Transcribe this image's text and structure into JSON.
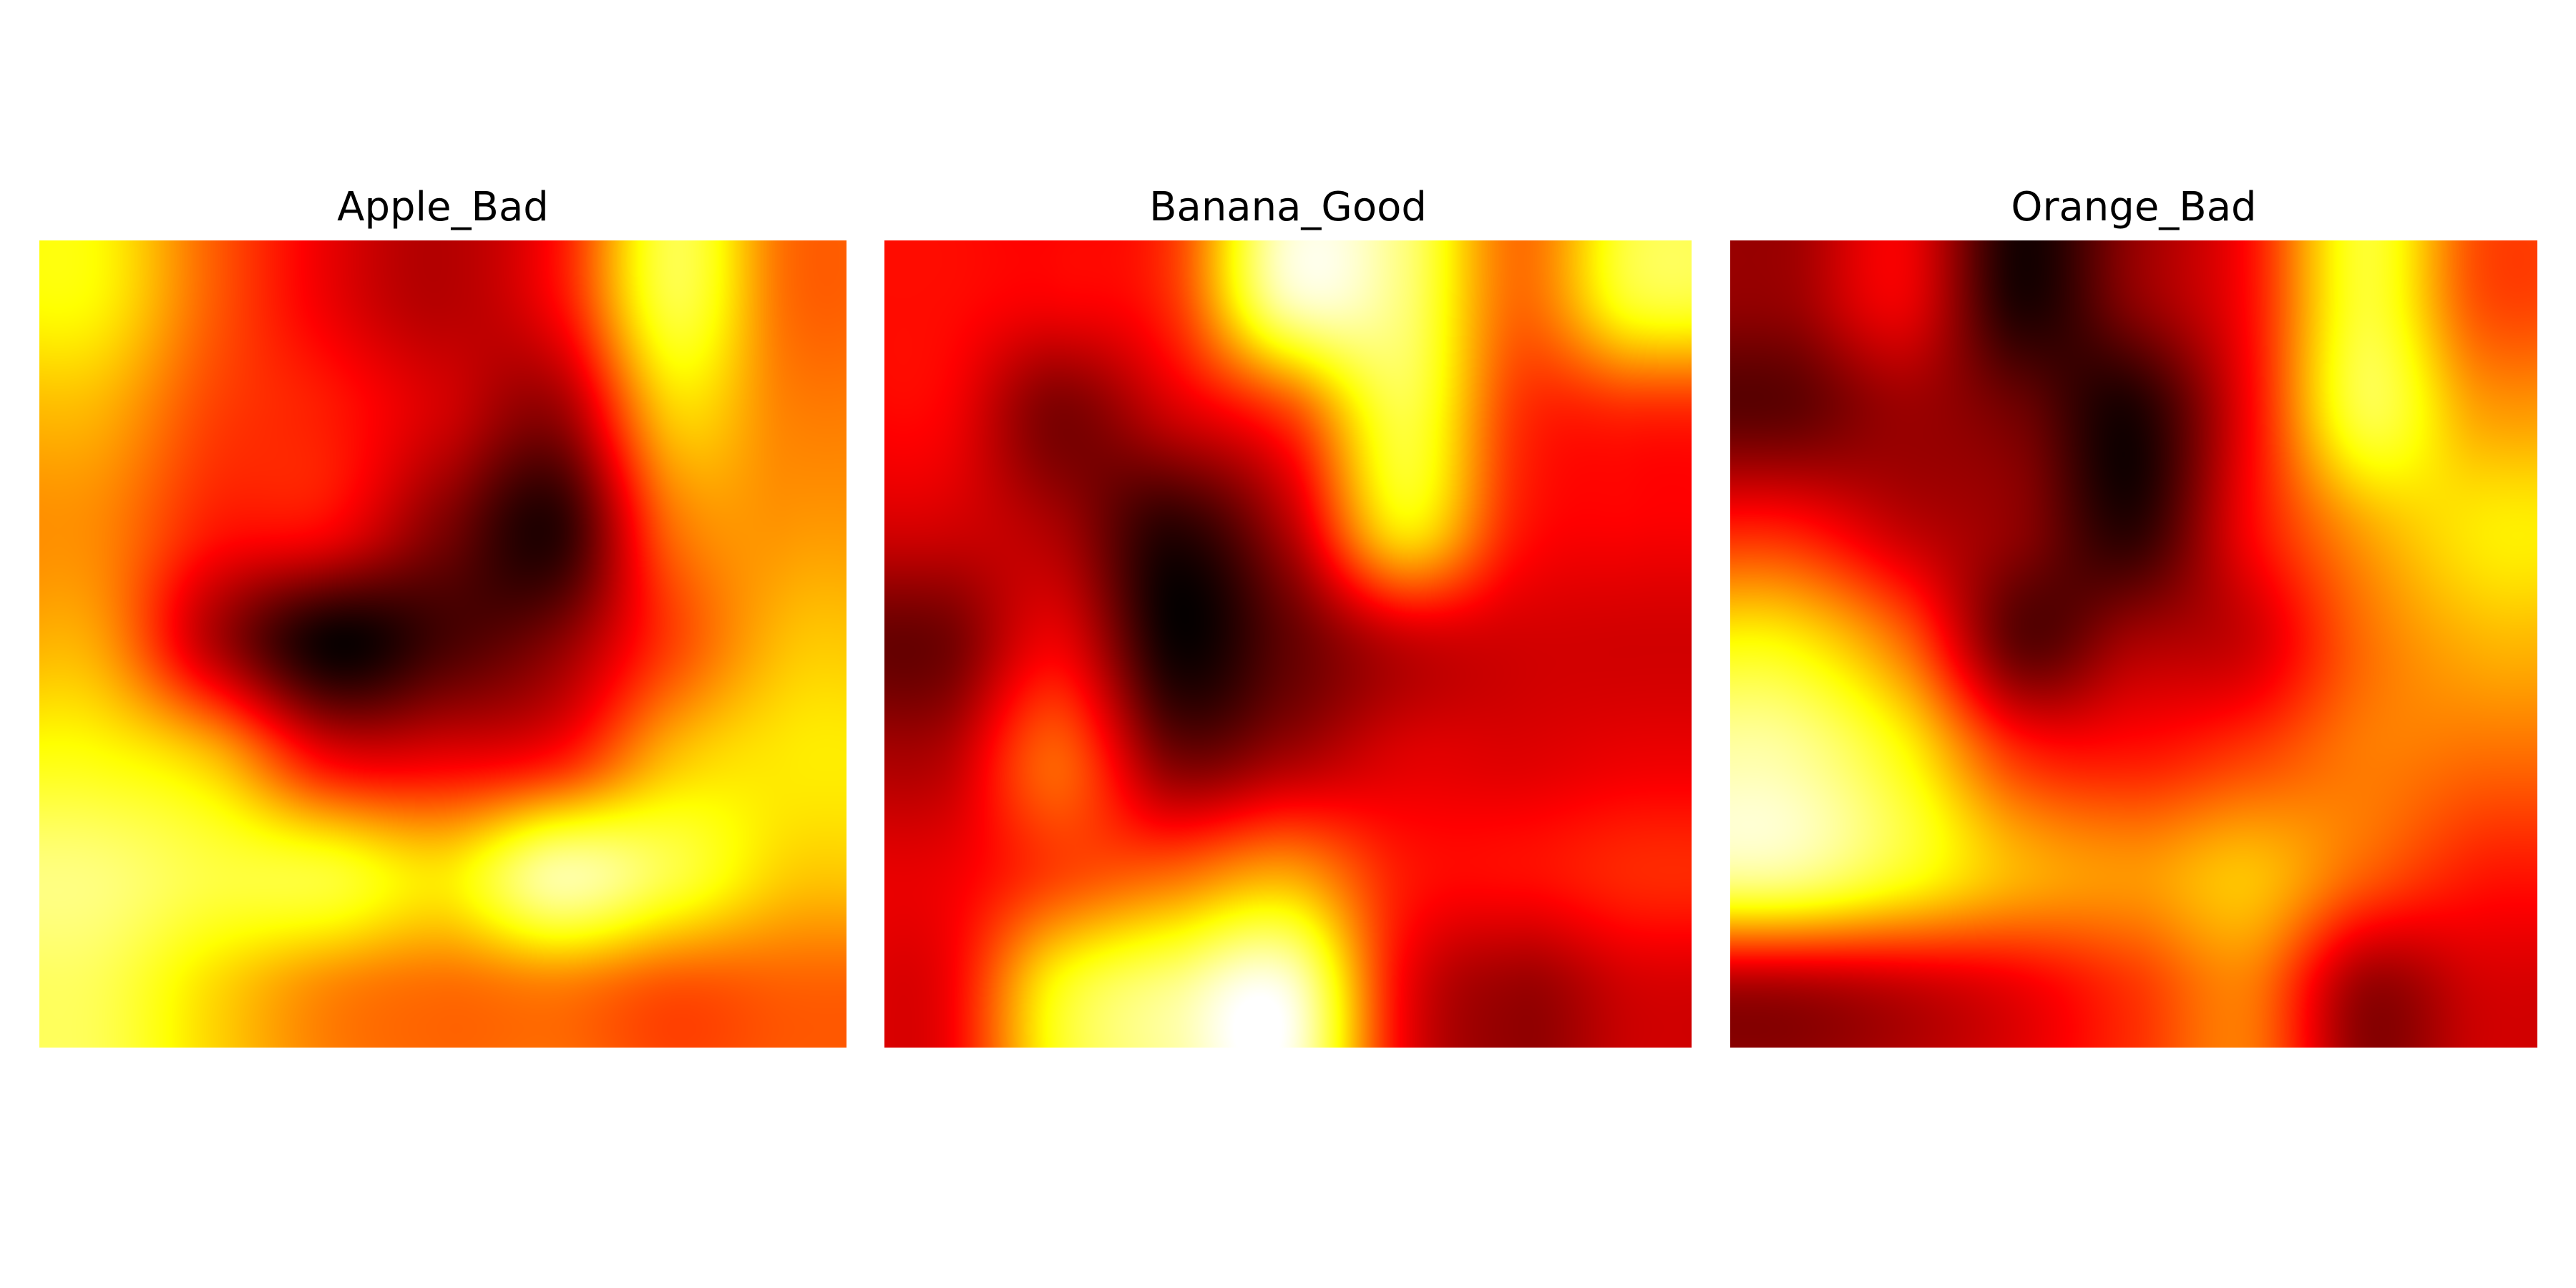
{
  "chart_data": [
    {
      "type": "heatmap",
      "title": "Apple_Bad",
      "colormap": "hot",
      "interpolation": "bicubic",
      "rows": 7,
      "cols": 7,
      "values": [
        [
          0.72,
          0.5,
          0.34,
          0.26,
          0.38,
          0.8,
          0.52
        ],
        [
          0.62,
          0.46,
          0.4,
          0.3,
          0.22,
          0.66,
          0.55
        ],
        [
          0.56,
          0.4,
          0.36,
          0.18,
          0.06,
          0.52,
          0.58
        ],
        [
          0.6,
          0.26,
          0.02,
          0.1,
          0.2,
          0.46,
          0.64
        ],
        [
          0.74,
          0.64,
          0.36,
          0.34,
          0.4,
          0.64,
          0.7
        ],
        [
          0.86,
          0.8,
          0.78,
          0.7,
          0.9,
          0.8,
          0.66
        ],
        [
          0.82,
          0.68,
          0.56,
          0.52,
          0.54,
          0.48,
          0.5
        ]
      ]
    },
    {
      "type": "heatmap",
      "title": "Banana_Good",
      "colormap": "hot",
      "interpolation": "bicubic",
      "rows": 7,
      "cols": 7,
      "values": [
        [
          0.38,
          0.36,
          0.44,
          0.92,
          0.86,
          0.52,
          0.78
        ],
        [
          0.36,
          0.18,
          0.3,
          0.46,
          0.8,
          0.44,
          0.42
        ],
        [
          0.3,
          0.24,
          0.06,
          0.26,
          0.7,
          0.4,
          0.36
        ],
        [
          0.16,
          0.34,
          0.02,
          0.14,
          0.28,
          0.3,
          0.3
        ],
        [
          0.26,
          0.5,
          0.18,
          0.24,
          0.32,
          0.32,
          0.34
        ],
        [
          0.34,
          0.46,
          0.52,
          0.6,
          0.4,
          0.38,
          0.42
        ],
        [
          0.34,
          0.74,
          0.88,
          0.96,
          0.36,
          0.22,
          0.3
        ]
      ]
    },
    {
      "type": "heatmap",
      "title": "Orange_Bad",
      "colormap": "hot",
      "interpolation": "bicubic",
      "rows": 7,
      "cols": 7,
      "values": [
        [
          0.22,
          0.34,
          0.04,
          0.2,
          0.38,
          0.78,
          0.48
        ],
        [
          0.14,
          0.22,
          0.16,
          0.04,
          0.36,
          0.8,
          0.6
        ],
        [
          0.4,
          0.28,
          0.2,
          0.06,
          0.36,
          0.6,
          0.7
        ],
        [
          0.72,
          0.52,
          0.14,
          0.24,
          0.3,
          0.52,
          0.62
        ],
        [
          0.9,
          0.74,
          0.44,
          0.4,
          0.46,
          0.54,
          0.52
        ],
        [
          0.88,
          0.76,
          0.62,
          0.58,
          0.64,
          0.5,
          0.4
        ],
        [
          0.24,
          0.28,
          0.34,
          0.44,
          0.54,
          0.22,
          0.3
        ]
      ]
    }
  ]
}
